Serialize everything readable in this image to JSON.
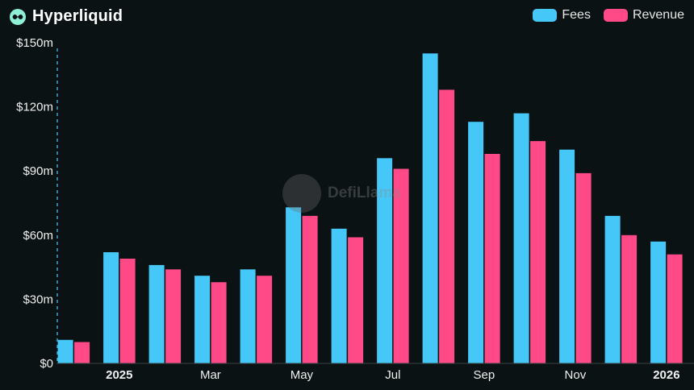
{
  "header": {
    "title": "Hyperliquid",
    "icon": "hyperliquid-logo-icon"
  },
  "watermark": {
    "text": "DefiLlama",
    "icon": "llama-logo-icon"
  },
  "colors": {
    "fees": "#45c8f8",
    "revenue": "#ff4a87",
    "background": "#0b1214",
    "brand": "#8ff0d8"
  },
  "chart_data": {
    "type": "bar",
    "title": "",
    "xlabel": "",
    "ylabel": "",
    "ylim": [
      0,
      150
    ],
    "y_unit": "m",
    "y_ticks": [
      "$0",
      "$30m",
      "$60m",
      "$90m",
      "$120m",
      "$150m"
    ],
    "x_ticks": [
      {
        "index": 1,
        "label": "2025",
        "bold": true
      },
      {
        "index": 3,
        "label": "Mar",
        "bold": false
      },
      {
        "index": 5,
        "label": "May",
        "bold": false
      },
      {
        "index": 7,
        "label": "Jul",
        "bold": false
      },
      {
        "index": 9,
        "label": "Sep",
        "bold": false
      },
      {
        "index": 11,
        "label": "Nov",
        "bold": false
      },
      {
        "index": 13,
        "label": "2026",
        "bold": true
      }
    ],
    "categories": [
      "Dec 2024",
      "Jan 2025",
      "Feb 2025",
      "Mar 2025",
      "Apr 2025",
      "May 2025",
      "Jun 2025",
      "Jul 2025",
      "Aug 2025",
      "Sep 2025",
      "Oct 2025",
      "Nov 2025",
      "Dec 2025",
      "Jan 2026"
    ],
    "series": [
      {
        "name": "Fees",
        "values": [
          11,
          52,
          46,
          41,
          44,
          73,
          63,
          96,
          145,
          113,
          117,
          100,
          69,
          57
        ]
      },
      {
        "name": "Revenue",
        "values": [
          10,
          49,
          44,
          38,
          41,
          69,
          59,
          91,
          128,
          98,
          104,
          89,
          60,
          51
        ]
      }
    ],
    "grid": false,
    "legend": "top-right"
  }
}
